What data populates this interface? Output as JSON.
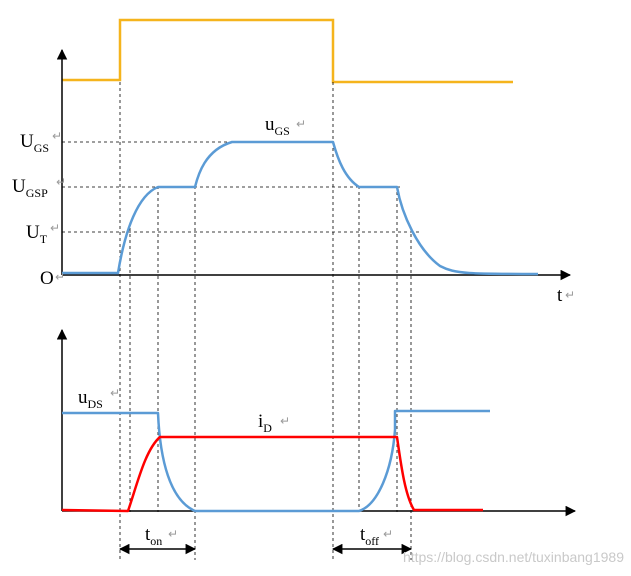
{
  "colors": {
    "gate_drive": "#f5b41c",
    "ugs_curve": "#5b9bd5",
    "uds_curve": "#5b9bd5",
    "id_curve": "#ff0000",
    "axis": "#000000",
    "guide": "#000000",
    "return_mark": "#9a9a9a",
    "watermark": "#cccccc"
  },
  "labels": {
    "ugs_level": {
      "main": "U",
      "sub": "GS"
    },
    "ugsp_level": {
      "main": "U",
      "sub": "GSP"
    },
    "ut_level": {
      "main": "U",
      "sub": "T"
    },
    "origin": "O",
    "t_axis": "t",
    "ugs_curve": {
      "main": "u",
      "sub": "GS"
    },
    "uds_curve": {
      "main": "u",
      "sub": "DS"
    },
    "id_curve": {
      "main": "i",
      "sub": "D"
    },
    "ton": {
      "main": "t",
      "sub": "on"
    },
    "toff": {
      "main": "t",
      "sub": "off"
    },
    "return_mark": "↵"
  },
  "watermark": "https://blog.csdn.net/tuxinbang1989"
}
